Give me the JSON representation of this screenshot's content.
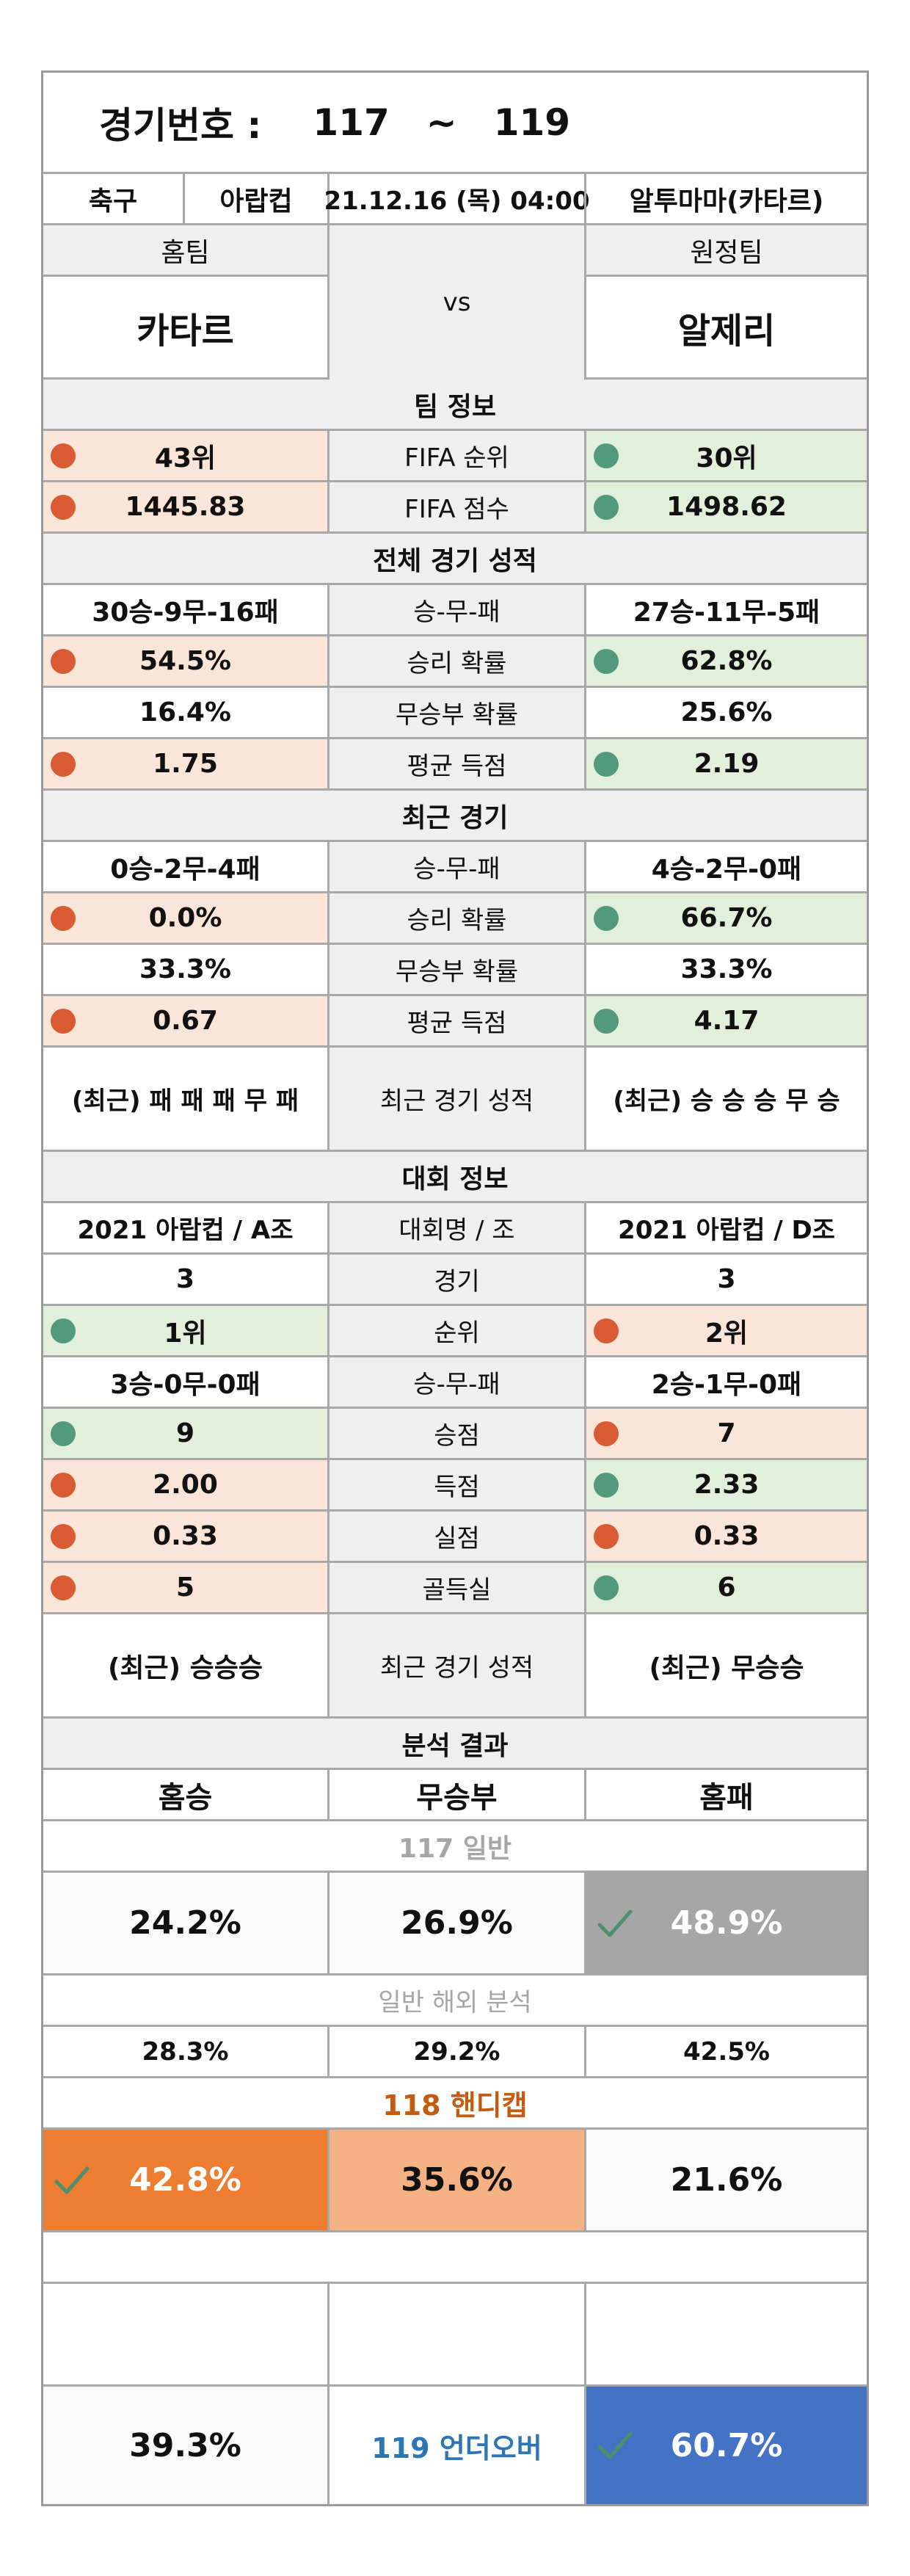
{
  "header": {
    "label": "경기번호 :",
    "from": "117",
    "tilde": "~",
    "to": "119"
  },
  "match_info": {
    "sport": "축구",
    "league": "아랍컵",
    "datetime": "21.12.16 (목) 04:00",
    "venue": "알투마마(카타르)"
  },
  "teams": {
    "home_label": "홈팀",
    "away_label": "원정팀",
    "home_name": "카타르",
    "away_name": "알제리",
    "vs": "vs"
  },
  "team_info": {
    "title": "팀 정보",
    "rows": [
      {
        "home": "43위",
        "label": "FIFA 순위",
        "away": "30위"
      },
      {
        "home": "1445.83",
        "label": "FIFA 점수",
        "away": "1498.62"
      }
    ]
  },
  "overall": {
    "title": "전체 경기 성적",
    "rows": [
      {
        "home": "30승-9무-16패",
        "label": "승-무-패",
        "away": "27승-11무-5패"
      },
      {
        "home": "54.5%",
        "label": "승리 확률",
        "away": "62.8%"
      },
      {
        "home": "16.4%",
        "label": "무승부 확률",
        "away": "25.6%"
      },
      {
        "home": "1.75",
        "label": "평균 득점",
        "away": "2.19"
      }
    ]
  },
  "recent": {
    "title": "최근 경기",
    "rows": [
      {
        "home": "0승-2무-4패",
        "label": "승-무-패",
        "away": "4승-2무-0패"
      },
      {
        "home": "0.0%",
        "label": "승리 확률",
        "away": "66.7%"
      },
      {
        "home": "33.3%",
        "label": "무승부 확률",
        "away": "33.3%"
      },
      {
        "home": "0.67",
        "label": "평균 득점",
        "away": "4.17"
      },
      {
        "home": "(최근) 패 패 패 무 패",
        "label": "최근 경기 성적",
        "away": "(최근) 승 승 승 무 승"
      }
    ]
  },
  "tournament": {
    "title": "대회 정보",
    "rows": [
      {
        "home": "2021 아랍컵 / A조",
        "label": "대회명 / 조",
        "away": "2021 아랍컵 / D조"
      },
      {
        "home": "3",
        "label": "경기",
        "away": "3"
      },
      {
        "home": "1위",
        "label": "순위",
        "away": "2위"
      },
      {
        "home": "3승-0무-0패",
        "label": "승-무-패",
        "away": "2승-1무-0패"
      },
      {
        "home": "9",
        "label": "승점",
        "away": "7"
      },
      {
        "home": "2.00",
        "label": "득점",
        "away": "2.33"
      },
      {
        "home": "0.33",
        "label": "실점",
        "away": "0.33"
      },
      {
        "home": "5",
        "label": "골득실",
        "away": "6"
      },
      {
        "home": "(최근) 승승승",
        "label": "최근 경기 성적",
        "away": "(최근) 무승승"
      }
    ]
  },
  "analysis": {
    "title": "분석 결과",
    "col_home_win": "홈승",
    "col_draw": "무승부",
    "col_home_loss": "홈패",
    "general": {
      "title": "117 일반",
      "home_win": "24.2%",
      "draw": "26.9%",
      "home_loss": "48.9%"
    },
    "overseas": {
      "title": "일반 해외 분석",
      "home_win": "28.3%",
      "draw": "29.2%",
      "home_loss": "42.5%"
    },
    "handicap": {
      "title": "118 핸디캡",
      "home_win": "42.8%",
      "draw": "35.6%",
      "home_loss": "21.6%"
    },
    "underover": {
      "title": "119 언더오버",
      "under": "39.3%",
      "over": "60.7%"
    }
  },
  "colors": {
    "header_gray": "#efefef",
    "negative_fill": "#fbe5d9",
    "positive_fill": "#e2efda",
    "negative_dot": "#d95b34",
    "positive_dot": "#52997e",
    "selected_gray": "#a6a6a6",
    "handicap_orange": "#ed7d31",
    "handicap_light_orange": "#f4b183",
    "handicap_title": "#c55a11",
    "underover_blue": "#4472c4",
    "underover_title": "#2e75b6"
  }
}
